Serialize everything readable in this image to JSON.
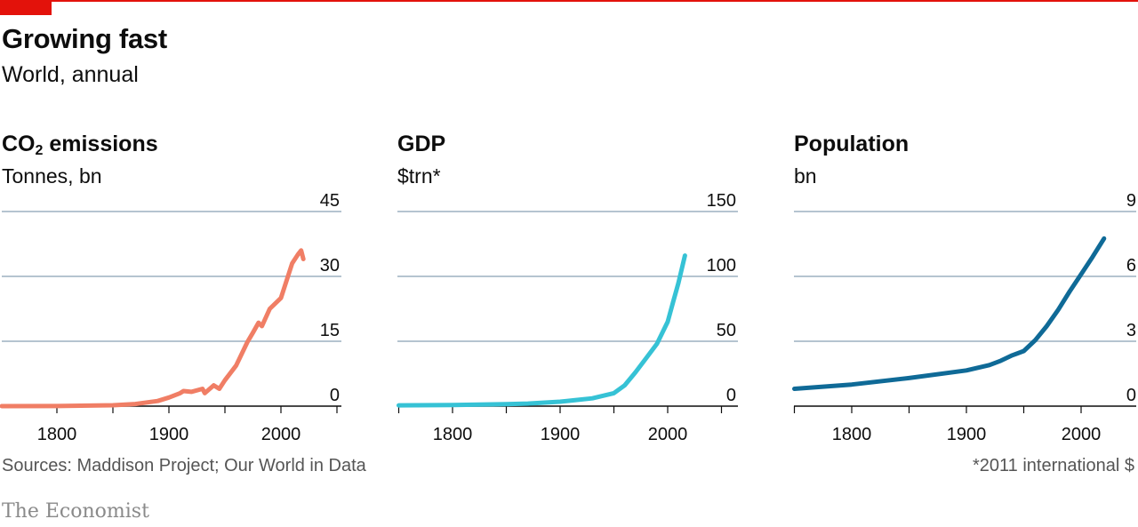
{
  "header": {
    "title": "Growing fast",
    "subtitle": "World, annual"
  },
  "footer": {
    "source": "Sources: Maddison Project; Our World in Data",
    "footnote": "*2011 international $",
    "brand": "The Economist"
  },
  "colors": {
    "accent": "#e3120b",
    "grid": "#b5c4d0",
    "co2": "#f07e65",
    "gdp": "#36c2d5",
    "population": "#0f6a97"
  },
  "chart_data": [
    {
      "type": "line",
      "title_main": "CO",
      "title_sub": "2",
      "title_rest": " emissions",
      "unit": "Tonnes, bn",
      "color": "#f07e65",
      "xlim": [
        1750,
        2050
      ],
      "xticks": [
        1800,
        1900,
        2000
      ],
      "ylim": [
        0,
        45
      ],
      "yticks": [
        0,
        15,
        30,
        45
      ],
      "grid": true,
      "series": [
        {
          "x": [
            1750,
            1800,
            1850,
            1870,
            1890,
            1900,
            1910,
            1913,
            1920,
            1930,
            1932,
            1940,
            1945,
            1950,
            1960,
            1970,
            1975,
            1980,
            1983,
            1990,
            2000,
            2005,
            2010,
            2015,
            2018,
            2020
          ],
          "y": [
            0.01,
            0.03,
            0.2,
            0.5,
            1.2,
            2,
            3,
            3.5,
            3.3,
            4,
            3,
            4.8,
            4,
            6,
            9.4,
            14.8,
            17,
            19.3,
            18.5,
            22.5,
            25,
            29,
            33,
            35,
            36,
            34
          ]
        }
      ]
    },
    {
      "type": "line",
      "title_main": "GDP",
      "unit": "$trn*",
      "color": "#36c2d5",
      "xlim": [
        1750,
        2050
      ],
      "xticks": [
        1800,
        1900,
        2000
      ],
      "ylim": [
        0,
        150
      ],
      "yticks": [
        0,
        50,
        100,
        150
      ],
      "grid": true,
      "series": [
        {
          "x": [
            1750,
            1800,
            1850,
            1870,
            1900,
            1913,
            1930,
            1940,
            1950,
            1960,
            1970,
            1980,
            1990,
            2000,
            2005,
            2010,
            2016
          ],
          "y": [
            0.6,
            0.9,
            1.5,
            2,
            3.4,
            4.5,
            6,
            8,
            10,
            16,
            26,
            37,
            48,
            65,
            80,
            95,
            116
          ]
        }
      ]
    },
    {
      "type": "line",
      "title_main": "Population",
      "unit": "bn",
      "color": "#0f6a97",
      "xlim": [
        1750,
        2050
      ],
      "xticks": [
        1800,
        1900,
        2000
      ],
      "ylim": [
        0,
        9
      ],
      "yticks": [
        0,
        3,
        6,
        9
      ],
      "grid": true,
      "series": [
        {
          "x": [
            1750,
            1800,
            1850,
            1900,
            1920,
            1930,
            1940,
            1950,
            1960,
            1970,
            1980,
            1990,
            2000,
            2010,
            2020
          ],
          "y": [
            0.8,
            1,
            1.3,
            1.65,
            1.9,
            2.1,
            2.35,
            2.55,
            3.05,
            3.7,
            4.45,
            5.3,
            6.1,
            6.9,
            7.75
          ]
        }
      ]
    }
  ]
}
